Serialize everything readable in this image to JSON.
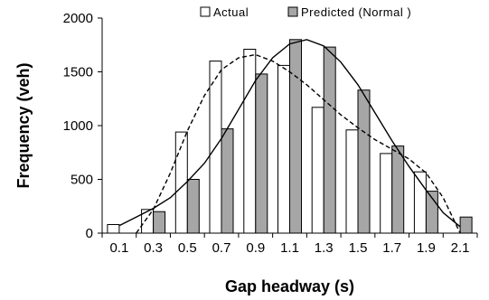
{
  "chart_data": {
    "type": "bar",
    "categories": [
      "0.1",
      "0.3",
      "0.5",
      "0.7",
      "0.9",
      "1.1",
      "1.3",
      "1.5",
      "1.7",
      "1.9",
      "2.1"
    ],
    "series": [
      {
        "name": "Actual",
        "values": [
          80,
          220,
          940,
          1600,
          1710,
          1560,
          1170,
          960,
          740,
          570,
          0
        ],
        "color": "#ffffff"
      },
      {
        "name": "Predicted (Normal )",
        "values": [
          0,
          200,
          500,
          970,
          1480,
          1800,
          1730,
          1330,
          810,
          390,
          150
        ],
        "color": "#a6a6a6"
      }
    ],
    "curves": [
      {
        "style": "dashed",
        "points": [
          [
            0.2,
            0
          ],
          [
            0.3,
            220
          ],
          [
            0.4,
            560
          ],
          [
            0.5,
            950
          ],
          [
            0.6,
            1280
          ],
          [
            0.7,
            1520
          ],
          [
            0.8,
            1630
          ],
          [
            0.9,
            1660
          ],
          [
            1.0,
            1600
          ],
          [
            1.1,
            1500
          ],
          [
            1.2,
            1380
          ],
          [
            1.3,
            1240
          ],
          [
            1.4,
            1100
          ],
          [
            1.5,
            980
          ],
          [
            1.6,
            870
          ],
          [
            1.7,
            780
          ],
          [
            1.8,
            690
          ],
          [
            1.9,
            560
          ],
          [
            2.0,
            330
          ],
          [
            2.1,
            0
          ]
        ]
      },
      {
        "style": "solid",
        "points": [
          [
            0.1,
            70
          ],
          [
            0.2,
            150
          ],
          [
            0.3,
            230
          ],
          [
            0.4,
            330
          ],
          [
            0.5,
            480
          ],
          [
            0.6,
            650
          ],
          [
            0.7,
            880
          ],
          [
            0.8,
            1150
          ],
          [
            0.9,
            1420
          ],
          [
            1.0,
            1630
          ],
          [
            1.1,
            1760
          ],
          [
            1.2,
            1800
          ],
          [
            1.3,
            1740
          ],
          [
            1.4,
            1590
          ],
          [
            1.5,
            1380
          ],
          [
            1.6,
            1120
          ],
          [
            1.7,
            860
          ],
          [
            1.8,
            620
          ],
          [
            1.9,
            400
          ],
          [
            2.0,
            190
          ],
          [
            2.1,
            60
          ]
        ]
      }
    ],
    "xlabel": "Gap headway (s)",
    "ylabel": "Frequency (veh)",
    "ylim": [
      0,
      2000
    ],
    "yticks": [
      0,
      500,
      1000,
      1500,
      2000
    ],
    "grid": false,
    "legend_position": "top-right"
  }
}
